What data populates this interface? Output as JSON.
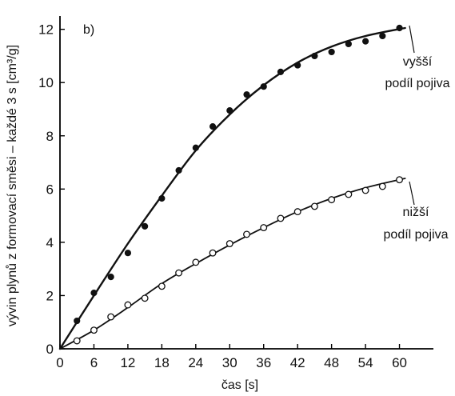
{
  "chart_data": {
    "type": "scatter",
    "panel_label": "b)",
    "xlabel": "čas [s]",
    "ylabel": "vývin plynů  z formovací směsi – každé 3 s [cm³/g]",
    "xlim": [
      0,
      66
    ],
    "ylim": [
      0,
      12.5
    ],
    "xticks": [
      0,
      6,
      12,
      18,
      24,
      30,
      36,
      42,
      48,
      54,
      60
    ],
    "yticks": [
      0,
      2,
      4,
      6,
      8,
      10,
      12
    ],
    "grid": false,
    "series": [
      {
        "name": "vyšší podíl pojiva",
        "label_lines": [
          "vyšší",
          "podíl pojiva"
        ],
        "marker": "filled-circle",
        "x": [
          3,
          6,
          9,
          12,
          15,
          18,
          21,
          24,
          27,
          30,
          33,
          36,
          39,
          42,
          45,
          48,
          51,
          54,
          57,
          60
        ],
        "y": [
          1.05,
          2.1,
          2.7,
          3.6,
          4.6,
          5.65,
          6.7,
          7.55,
          8.35,
          8.95,
          9.55,
          9.85,
          10.4,
          10.65,
          11.0,
          11.15,
          11.45,
          11.55,
          11.75,
          12.05
        ],
        "fit_x": [
          0,
          6,
          12,
          18,
          24,
          30,
          36,
          42,
          48,
          54,
          61
        ],
        "fit_y": [
          0,
          2.0,
          3.95,
          5.75,
          7.45,
          8.8,
          9.9,
          10.75,
          11.35,
          11.75,
          12.05
        ]
      },
      {
        "name": "nižší podíl pojiva",
        "label_lines": [
          "nižší",
          "podíl pojiva"
        ],
        "marker": "open-circle",
        "x": [
          3,
          6,
          9,
          12,
          15,
          18,
          21,
          24,
          27,
          30,
          33,
          36,
          39,
          42,
          45,
          48,
          51,
          54,
          57,
          60
        ],
        "y": [
          0.3,
          0.7,
          1.2,
          1.65,
          1.9,
          2.35,
          2.85,
          3.25,
          3.6,
          3.95,
          4.3,
          4.55,
          4.9,
          5.15,
          5.35,
          5.6,
          5.8,
          5.95,
          6.1,
          6.35
        ],
        "fit_x": [
          0,
          6,
          12,
          18,
          24,
          30,
          36,
          42,
          48,
          54,
          61
        ],
        "fit_y": [
          0,
          0.7,
          1.55,
          2.45,
          3.2,
          3.9,
          4.55,
          5.15,
          5.65,
          6.05,
          6.4
        ]
      }
    ]
  }
}
